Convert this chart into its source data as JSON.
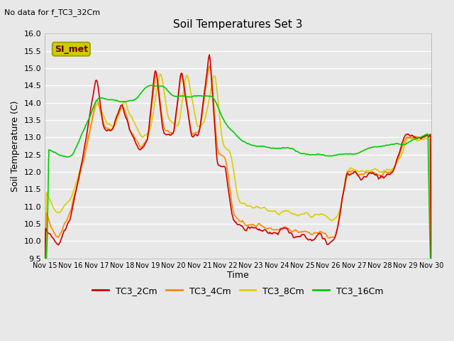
{
  "title": "Soil Temperatures Set 3",
  "subtitle": "No data for f_TC3_32Cm",
  "ylabel": "Soil Temperature (C)",
  "xlabel": "Time",
  "ylim": [
    9.5,
    16.0
  ],
  "yticks": [
    9.5,
    10.0,
    10.5,
    11.0,
    11.5,
    12.0,
    12.5,
    13.0,
    13.5,
    14.0,
    14.5,
    15.0,
    15.5,
    16.0
  ],
  "xtick_labels": [
    "Nov 15",
    "Nov 16",
    "Nov 17",
    "Nov 18",
    "Nov 19",
    "Nov 20",
    "Nov 21",
    "Nov 22",
    "Nov 23",
    "Nov 24",
    "Nov 25",
    "Nov 26",
    "Nov 27",
    "Nov 28",
    "Nov 29",
    "Nov 30"
  ],
  "series_colors": {
    "TC3_2Cm": "#cc0000",
    "TC3_4Cm": "#ff8800",
    "TC3_8Cm": "#ddcc00",
    "TC3_16Cm": "#00cc00"
  },
  "legend_labels": [
    "TC3_2Cm",
    "TC3_4Cm",
    "TC3_8Cm",
    "TC3_16Cm"
  ],
  "legend_colors": [
    "#cc0000",
    "#ff8800",
    "#ddcc00",
    "#00cc00"
  ],
  "bg_color": "#e8e8e8",
  "box_color": "#cccc00",
  "box_text": "SI_met",
  "linewidth": 1.2,
  "grid_color": "white"
}
